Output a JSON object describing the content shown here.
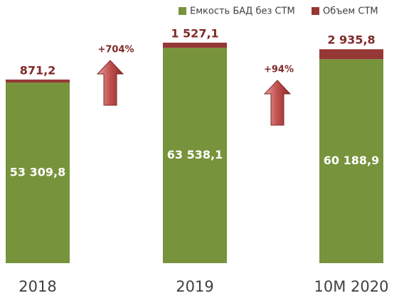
{
  "chart_data": {
    "type": "bar",
    "stacked": true,
    "categories": [
      "2018",
      "2019",
      "10M 2020"
    ],
    "series": [
      {
        "name": "Емкость БАД без СТМ",
        "color": "#77933c",
        "values": [
          53309.8,
          63538.1,
          60188.9
        ],
        "value_labels": [
          "53 309,8",
          "63 538,1",
          "60 188,9"
        ]
      },
      {
        "name": "Объем СТМ",
        "color": "#953735",
        "values": [
          871.2,
          1527.1,
          2935.8
        ],
        "value_labels": [
          "871,2",
          "1 527,1",
          "2 935,8"
        ]
      }
    ],
    "annotations": [
      "+704%",
      "+94%"
    ],
    "legend": "top-right"
  }
}
